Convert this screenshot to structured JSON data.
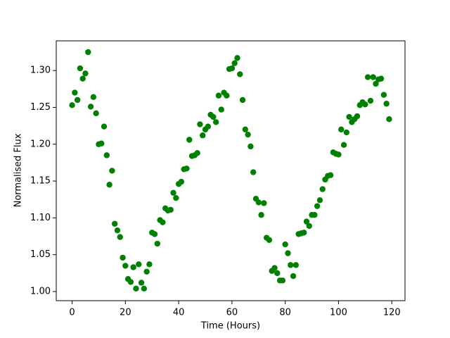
{
  "chart_data": {
    "type": "scatter",
    "x_label": "Time (Hours)",
    "y_label": "Normalised Flux",
    "color": "#008000",
    "x": [
      0,
      1,
      2,
      3,
      4,
      5,
      6,
      7,
      8,
      9,
      10,
      11,
      12,
      13,
      14,
      15,
      16,
      17,
      18,
      19,
      20,
      21,
      22,
      23,
      24,
      25,
      26,
      27,
      28,
      29,
      30,
      31,
      32,
      33,
      34,
      35,
      36,
      37,
      38,
      39,
      40,
      41,
      42,
      43,
      44,
      45,
      46,
      47,
      48,
      49,
      50,
      51,
      52,
      53,
      54,
      55,
      56,
      57,
      58,
      59,
      60,
      61,
      62,
      63,
      64,
      65,
      66,
      67,
      68,
      69,
      70,
      71,
      72,
      73,
      74,
      75,
      76,
      77,
      78,
      79,
      80,
      81,
      82,
      83,
      84,
      85,
      86,
      87,
      88,
      89,
      90,
      91,
      92,
      93,
      94,
      95,
      96,
      97,
      98,
      99,
      100,
      101,
      102,
      103,
      104,
      105,
      106,
      107,
      108,
      109,
      110,
      111,
      112,
      113,
      114,
      115,
      116,
      117,
      118,
      119
    ],
    "values": [
      1.253,
      1.27,
      1.26,
      1.303,
      1.289,
      1.296,
      1.325,
      1.251,
      1.264,
      1.242,
      1.2,
      1.201,
      1.224,
      1.185,
      1.145,
      1.164,
      1.092,
      1.083,
      1.074,
      1.046,
      1.035,
      1.017,
      1.013,
      1.033,
      1.004,
      1.037,
      1.012,
      1.004,
      1.027,
      1.037,
      1.08,
      1.078,
      1.065,
      1.097,
      1.094,
      1.113,
      1.11,
      1.111,
      1.134,
      1.127,
      1.146,
      1.149,
      1.166,
      1.167,
      1.206,
      1.184,
      1.185,
      1.188,
      1.227,
      1.212,
      1.22,
      1.224,
      1.24,
      1.237,
      1.23,
      1.266,
      1.247,
      1.27,
      1.266,
      1.302,
      1.303,
      1.31,
      1.317,
      1.295,
      1.26,
      1.22,
      1.213,
      1.197,
      1.162,
      1.126,
      1.121,
      1.104,
      1.12,
      1.073,
      1.07,
      1.028,
      1.032,
      1.025,
      1.015,
      1.015,
      1.064,
      1.052,
      1.036,
      1.021,
      1.036,
      1.078,
      1.079,
      1.08,
      1.095,
      1.089,
      1.104,
      1.104,
      1.116,
      1.124,
      1.139,
      1.152,
      1.157,
      1.158,
      1.189,
      1.187,
      1.186,
      1.22,
      1.199,
      1.216,
      1.237,
      1.23,
      1.234,
      1.238,
      1.253,
      1.257,
      1.254,
      1.291,
      1.259,
      1.291,
      1.282,
      1.288,
      1.289,
      1.267,
      1.255,
      1.234
    ],
    "xlim": [
      -5.95,
      124.95
    ],
    "xticks": [
      0,
      20,
      40,
      60,
      80,
      100,
      120
    ],
    "ylim": [
      0.9876,
      1.3403
    ],
    "yticks": [
      {
        "value": 1.0,
        "label": "1.00"
      },
      1.05,
      {
        "value": 1.1,
        "label": "1.10"
      },
      1.15,
      {
        "value": 1.2,
        "label": "1.20"
      },
      1.25,
      {
        "value": 1.3,
        "label": "1.30"
      }
    ]
  }
}
